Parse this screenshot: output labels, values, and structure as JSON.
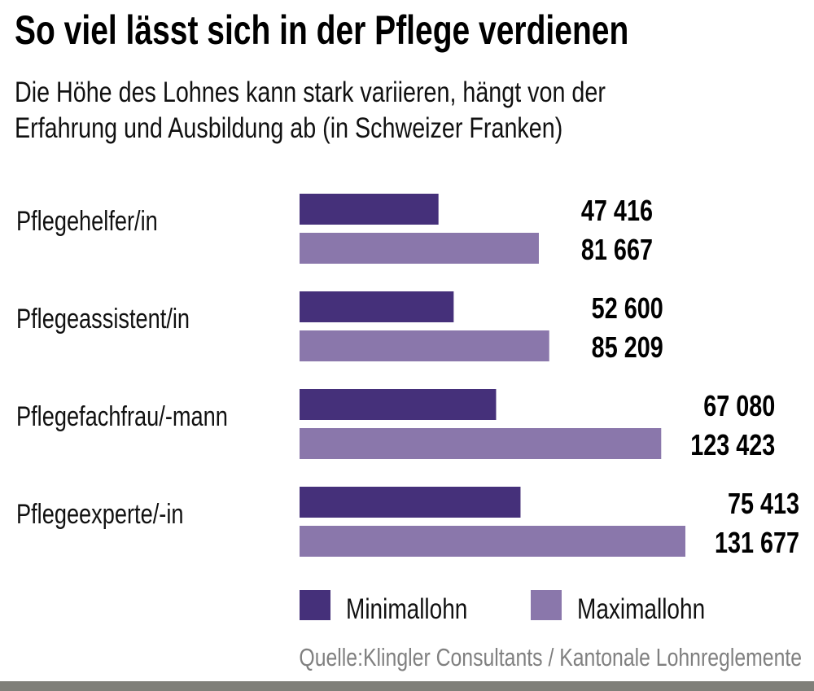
{
  "chart_data": {
    "type": "bar",
    "orientation": "horizontal",
    "title": "So viel lässt sich in der Pflege verdienen",
    "subtitle": [
      "Die Höhe des Lohnes kann stark variieren, hängt von der",
      "Erfahrung und Ausbildung ab (in Schweizer Franken)"
    ],
    "categories": [
      "Pflegehelfer/in",
      "Pflegeassistent/in",
      "Pflegefachfrau/-mann",
      "Pflegeexperte/-in"
    ],
    "series": [
      {
        "name": "Minimallohn",
        "values": [
          47416,
          52600,
          67080,
          75413
        ],
        "labels": [
          "47 416",
          "52 600",
          "67 080",
          "75 413"
        ],
        "color": "#45307a"
      },
      {
        "name": "Maximallohn",
        "values": [
          81667,
          85209,
          123423,
          131677
        ],
        "labels": [
          "81 667",
          "85 209",
          "123 423",
          "131 677"
        ],
        "color": "#8a77ab"
      }
    ],
    "xlim": [
      0,
      131677
    ],
    "grid": false,
    "legend": "bottom",
    "source": "Quelle:Klingler Consultants / Kantonale Lohnreglemente"
  }
}
